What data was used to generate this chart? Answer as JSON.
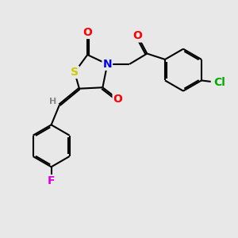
{
  "bg_color": "#e8e8e8",
  "bond_color": "#000000",
  "bond_width": 1.5,
  "dbo": 0.06,
  "atom_colors": {
    "S": "#cccc00",
    "N": "#0000ee",
    "O": "#ff0000",
    "F": "#dd00dd",
    "Cl": "#00aa00",
    "H": "#888888",
    "C": "#000000"
  },
  "font_size": 8.5
}
